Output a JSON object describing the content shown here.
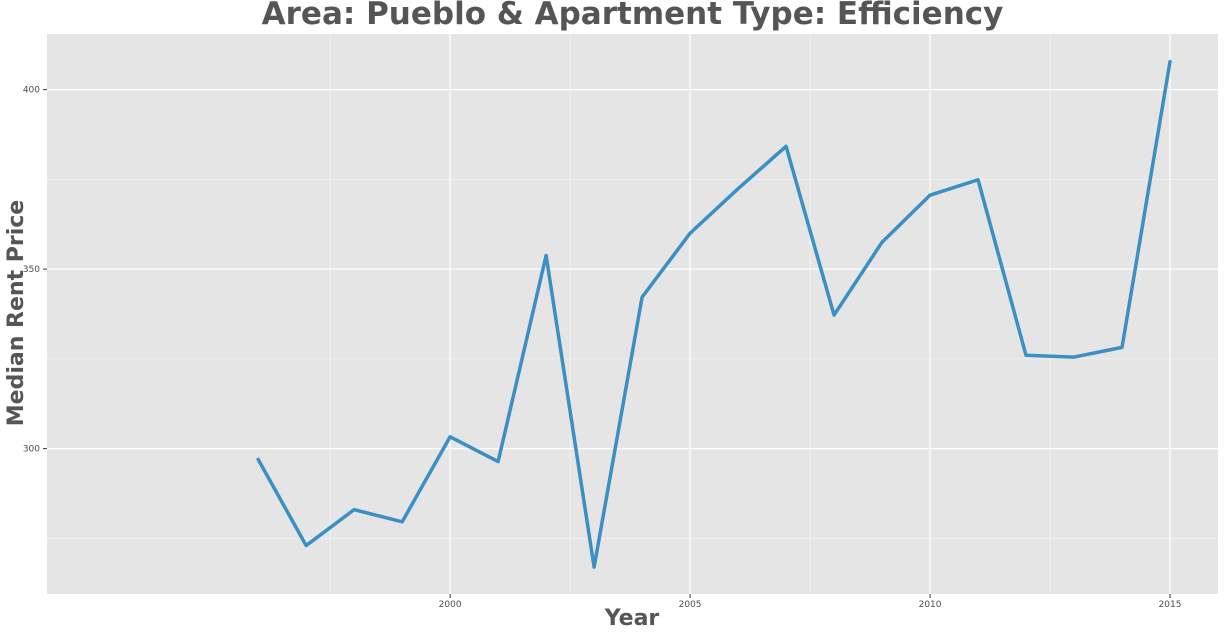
{
  "chart_data": {
    "type": "line",
    "title": "Area: Pueblo & Apartment Type: Efficiency",
    "xlabel": "Year",
    "ylabel": "Median Rent Price",
    "x": [
      1996,
      1997,
      1998,
      1999,
      2000,
      2001,
      2002,
      2003,
      2004,
      2005,
      2006,
      2007,
      2008,
      2009,
      2010,
      2011,
      2012,
      2013,
      2014,
      2015
    ],
    "series": [
      {
        "values": [
          297,
          273,
          283,
          279.6,
          303.3,
          296.4,
          353.8,
          267,
          342.2,
          360,
          372.4,
          384.2,
          337.2,
          357.5,
          370.6,
          374.9,
          326,
          325.5,
          328.2,
          407.8
        ]
      }
    ],
    "xlim": [
      1991.6,
      2016
    ],
    "ylim": [
      259.5,
      415.5
    ],
    "x_ticks": [
      2000,
      2005,
      2010,
      2015
    ],
    "x_tick_labels": [
      "2000",
      "2005",
      "2010",
      "2015"
    ],
    "y_ticks": [
      300,
      350,
      400
    ],
    "y_tick_labels": [
      "300",
      "350",
      "400"
    ],
    "line_color": "#3a8fc3",
    "panel_color": "#e5e5e5",
    "grid_color": "#ffffff",
    "grid": true
  }
}
